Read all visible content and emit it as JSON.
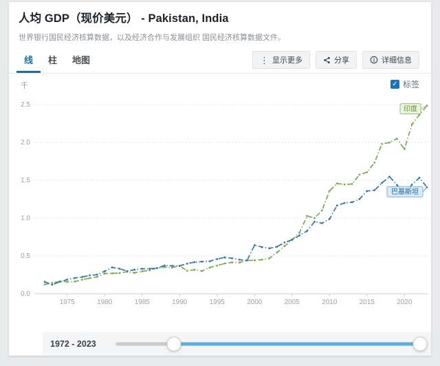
{
  "colors": {
    "accent_blue": "#1b6fa6",
    "checkbox_blue": "#1b74b8",
    "india_line": "#7ea651",
    "pakistan_line": "#3177a6",
    "india_label_bg": "#eaf3df",
    "india_label_border": "#93b969",
    "india_label_text": "#648f3d",
    "pakistan_label_bg": "#d9eaf7",
    "pakistan_label_border": "#77aed8",
    "pakistan_label_text": "#1d6a9e",
    "slider_selected": "#5fade0"
  },
  "header": {
    "title": "人均 GDP（现价美元） - Pakistan, India",
    "subtitle": "世界银行国民经济核算数据，以及经济合作与发展组织 国民经济核算数据文件。"
  },
  "tabs": [
    {
      "label": "线",
      "active": true
    },
    {
      "label": "柱",
      "active": false
    },
    {
      "label": "地图",
      "active": false
    }
  ],
  "toolbar": {
    "more_label": "显示更多",
    "share_label": "分享",
    "details_label": "详细信息"
  },
  "chart": {
    "unit_label": "千",
    "labels_checkbox": {
      "label": "标签",
      "checked": true
    }
  },
  "chart_data": {
    "type": "line",
    "title": "人均 GDP（现价美元）",
    "ylabel": "千",
    "xlabel": "",
    "grid": "horizontal-dotted",
    "xlim": [
      1972,
      2023
    ],
    "ylim": [
      0,
      2.5
    ],
    "yticks": [
      0,
      0.5,
      1,
      1.5,
      2,
      2.5
    ],
    "xticks": [
      1975,
      1980,
      1985,
      1990,
      1995,
      2000,
      2005,
      2010,
      2015,
      2020
    ],
    "x": [
      1972,
      1973,
      1974,
      1975,
      1976,
      1977,
      1978,
      1979,
      1980,
      1981,
      1982,
      1983,
      1984,
      1985,
      1986,
      1987,
      1988,
      1989,
      1990,
      1991,
      1992,
      1993,
      1994,
      1995,
      1996,
      1997,
      1998,
      1999,
      2000,
      2001,
      2002,
      2003,
      2004,
      2005,
      2006,
      2007,
      2008,
      2009,
      2010,
      2011,
      2012,
      2013,
      2014,
      2015,
      2016,
      2017,
      2018,
      2019,
      2020,
      2021,
      2022,
      2023
    ],
    "series": [
      {
        "name": "印度",
        "name_en": "India",
        "color": "#7ea651",
        "end_label": "印度",
        "values": [
          0.123,
          0.144,
          0.163,
          0.158,
          0.161,
          0.186,
          0.206,
          0.224,
          0.267,
          0.27,
          0.274,
          0.291,
          0.277,
          0.296,
          0.31,
          0.34,
          0.354,
          0.346,
          0.368,
          0.303,
          0.317,
          0.301,
          0.346,
          0.373,
          0.4,
          0.415,
          0.413,
          0.441,
          0.443,
          0.451,
          0.47,
          0.546,
          0.628,
          0.715,
          0.806,
          1.028,
          0.999,
          1.102,
          1.358,
          1.458,
          1.444,
          1.45,
          1.574,
          1.606,
          1.733,
          1.981,
          1.998,
          2.05,
          1.913,
          2.238,
          2.366,
          2.485
        ]
      },
      {
        "name": "巴基斯坦",
        "name_en": "Pakistan",
        "color": "#3177a6",
        "end_label": "巴基斯坦",
        "values": [
          0.158,
          0.12,
          0.158,
          0.187,
          0.208,
          0.222,
          0.243,
          0.253,
          0.297,
          0.349,
          0.331,
          0.3,
          0.318,
          0.331,
          0.33,
          0.339,
          0.374,
          0.369,
          0.368,
          0.398,
          0.418,
          0.425,
          0.428,
          0.459,
          0.48,
          0.469,
          0.45,
          0.441,
          0.642,
          0.616,
          0.601,
          0.622,
          0.677,
          0.714,
          0.771,
          0.829,
          0.952,
          0.933,
          0.987,
          1.166,
          1.199,
          1.209,
          1.251,
          1.357,
          1.368,
          1.464,
          1.548,
          1.437,
          1.322,
          1.443,
          1.533,
          1.407
        ]
      }
    ]
  },
  "slider": {
    "label": "1972 - 2023"
  }
}
